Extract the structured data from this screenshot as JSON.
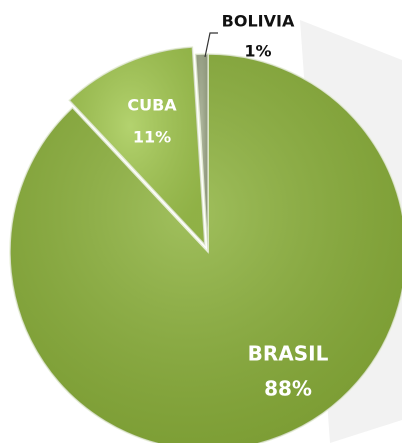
{
  "chart_data": {
    "type": "pie",
    "categories": [
      "BRASIL",
      "CUBA",
      "BOLIVIA"
    ],
    "values": [
      88,
      11,
      1
    ],
    "value_labels": [
      "88%",
      "11%",
      "1%"
    ],
    "colors": [
      "#8cb23a",
      "#a3c94f",
      "#9fa98a"
    ]
  }
}
